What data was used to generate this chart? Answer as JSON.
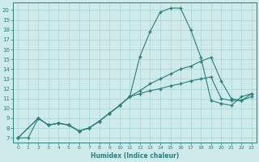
{
  "xlabel": "Humidex (Indice chaleur)",
  "background_color": "#ceeaea",
  "line_color": "#2d7d7d",
  "grid_color": "#a8d4d4",
  "xlim": [
    -0.5,
    23.5
  ],
  "ylim": [
    6.5,
    20.8
  ],
  "yticks": [
    7,
    8,
    9,
    10,
    11,
    12,
    13,
    14,
    15,
    16,
    17,
    18,
    19,
    20
  ],
  "xticks": [
    0,
    1,
    2,
    3,
    4,
    5,
    6,
    7,
    8,
    9,
    10,
    11,
    12,
    13,
    14,
    15,
    16,
    17,
    18,
    19,
    20,
    21,
    22,
    23
  ],
  "line1_x": [
    0,
    1,
    2,
    3,
    4,
    5,
    6,
    7,
    8,
    9,
    10,
    11,
    12,
    13,
    14,
    15,
    16,
    17,
    18,
    19,
    20,
    21,
    22,
    23
  ],
  "line1_y": [
    7.0,
    7.0,
    9.0,
    8.3,
    8.5,
    8.3,
    7.7,
    8.0,
    8.7,
    9.5,
    10.3,
    11.2,
    15.3,
    17.8,
    19.8,
    20.2,
    20.2,
    18.0,
    15.2,
    10.8,
    10.5,
    10.3,
    11.2,
    11.5
  ],
  "line2_x": [
    0,
    2,
    3,
    4,
    5,
    6,
    7,
    8,
    9,
    10,
    11,
    12,
    13,
    14,
    15,
    16,
    17,
    18,
    19,
    20,
    21,
    22,
    23
  ],
  "line2_y": [
    7.0,
    9.0,
    8.3,
    8.5,
    8.3,
    7.7,
    8.0,
    8.7,
    9.5,
    10.3,
    11.2,
    11.8,
    12.5,
    13.0,
    13.5,
    14.0,
    14.3,
    14.8,
    15.2,
    12.8,
    11.0,
    10.8,
    11.5
  ],
  "line3_x": [
    0,
    2,
    3,
    4,
    5,
    6,
    7,
    8,
    9,
    10,
    11,
    12,
    13,
    14,
    15,
    16,
    17,
    18,
    19,
    20,
    21,
    22,
    23
  ],
  "line3_y": [
    7.0,
    9.0,
    8.3,
    8.5,
    8.3,
    7.7,
    8.0,
    8.7,
    9.5,
    10.3,
    11.2,
    11.5,
    11.8,
    12.0,
    12.3,
    12.5,
    12.8,
    13.0,
    13.2,
    11.0,
    10.8,
    10.8,
    11.2
  ]
}
